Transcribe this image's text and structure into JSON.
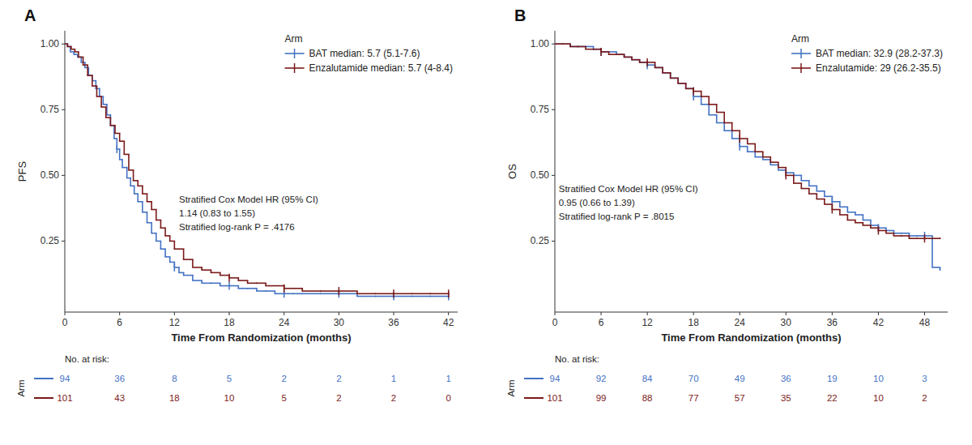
{
  "chart_data": [
    {
      "type": "step",
      "title": "A",
      "ylabel": "PFS",
      "xlabel": "Time From Randomization (months)",
      "xlim": [
        0,
        43
      ],
      "ylim": [
        -0.02,
        1.05
      ],
      "xticks": [
        0,
        6,
        12,
        18,
        24,
        30,
        36,
        42
      ],
      "yticks": [
        0.25,
        {
          "value": 0.5,
          "label": "0.50"
        },
        0.75,
        {
          "value": 1,
          "label": "1.00"
        }
      ],
      "grid": false,
      "legend": "upper right",
      "legend_title": "Arm",
      "annotations": [
        {
          "text": "Stratified Cox Model HR (95% CI)\n1.14 (0.83 to 1.55)\nStratified log-rank  P = .4176",
          "x": 12.5,
          "y": 0.43
        }
      ],
      "at_risk_label": "No. at risk:",
      "at_risk_row_label": "Arm",
      "at_risk_times": [
        0,
        6,
        12,
        18,
        24,
        30,
        36,
        42
      ],
      "series": [
        {
          "name": "BAT median: 5.7 (5.1-7.6)",
          "color": "#4472C4",
          "x": [
            0.0,
            0.3,
            0.6,
            1.0,
            1.4,
            1.8,
            2.2,
            2.6,
            3.0,
            3.4,
            3.8,
            4.2,
            4.6,
            5.0,
            5.4,
            5.7,
            6.0,
            6.3,
            6.8,
            7.2,
            7.6,
            8.0,
            8.5,
            9.0,
            9.5,
            10.0,
            10.5,
            11.0,
            11.5,
            12.0,
            12.5,
            13.0,
            14.0,
            15.0,
            16.0,
            17.0,
            18.0,
            19.0,
            20.0,
            21.0,
            22.0,
            23.0,
            24.0,
            25.0,
            26.0,
            28.0,
            30.0,
            32.0,
            34.0,
            36.0,
            38.0,
            40.0,
            42.0
          ],
          "values": [
            1.0,
            0.99,
            0.97,
            0.96,
            0.95,
            0.93,
            0.91,
            0.88,
            0.86,
            0.83,
            0.8,
            0.77,
            0.73,
            0.69,
            0.64,
            0.6,
            0.56,
            0.53,
            0.49,
            0.46,
            0.43,
            0.4,
            0.36,
            0.32,
            0.28,
            0.25,
            0.22,
            0.19,
            0.17,
            0.15,
            0.13,
            0.12,
            0.1,
            0.09,
            0.09,
            0.08,
            0.08,
            0.07,
            0.07,
            0.06,
            0.06,
            0.05,
            0.05,
            0.05,
            0.05,
            0.05,
            0.05,
            0.04,
            0.04,
            0.04,
            0.04,
            0.04,
            0.04
          ],
          "censor_x": [
            5.7,
            12.0,
            18.0,
            24.0,
            30.0,
            36.0,
            42.0
          ],
          "censor_y": [
            0.6,
            0.15,
            0.08,
            0.05,
            0.05,
            0.04,
            0.04
          ],
          "at_risk": [
            94,
            36,
            8,
            5,
            2,
            2,
            1,
            1
          ]
        },
        {
          "name": "Enzalutamide median: 5.7 (4-8.4)",
          "color": "#7B1A1A",
          "x": [
            0.0,
            0.3,
            0.7,
            1.1,
            1.5,
            2.0,
            2.5,
            3.0,
            3.5,
            4.0,
            4.5,
            5.0,
            5.5,
            6.0,
            6.5,
            7.0,
            7.5,
            8.0,
            8.5,
            9.0,
            9.5,
            10.0,
            10.5,
            11.0,
            11.5,
            12.0,
            13.0,
            14.0,
            15.0,
            16.0,
            17.0,
            18.0,
            19.0,
            20.0,
            21.0,
            22.0,
            24.0,
            26.0,
            28.0,
            30.0,
            32.0,
            34.0,
            36.0,
            38.0,
            40.0,
            42.0
          ],
          "values": [
            1.0,
            0.99,
            0.98,
            0.97,
            0.95,
            0.92,
            0.88,
            0.84,
            0.8,
            0.76,
            0.72,
            0.69,
            0.66,
            0.63,
            0.58,
            0.52,
            0.48,
            0.46,
            0.43,
            0.4,
            0.37,
            0.33,
            0.3,
            0.27,
            0.25,
            0.22,
            0.18,
            0.15,
            0.14,
            0.13,
            0.12,
            0.11,
            0.1,
            0.09,
            0.09,
            0.08,
            0.07,
            0.06,
            0.06,
            0.06,
            0.05,
            0.05,
            0.05,
            0.05,
            0.05,
            0.05
          ],
          "censor_x": [
            18.0,
            24.0,
            30.0,
            36.0,
            42.0
          ],
          "censor_y": [
            0.11,
            0.07,
            0.06,
            0.05,
            0.05
          ],
          "at_risk": [
            101,
            43,
            18,
            10,
            5,
            2,
            2,
            0
          ]
        }
      ]
    },
    {
      "type": "step",
      "title": "B",
      "ylabel": "OS",
      "xlabel": "Time From Randomization (months)",
      "xlim": [
        0,
        51
      ],
      "ylim": [
        -0.02,
        1.05
      ],
      "xticks": [
        0,
        6,
        12,
        18,
        24,
        30,
        36,
        42,
        48
      ],
      "yticks": [
        0.25,
        {
          "value": 0.5,
          "label": "0.50"
        },
        0.75,
        {
          "value": 1,
          "label": "1.00"
        }
      ],
      "grid": false,
      "legend": "upper right",
      "legend_title": "Arm",
      "annotations": [
        {
          "text": "Stratified Cox Model HR (95% CI)\n0.95 (0.66 to 1.39)\nStratified log-rank  P = .8015",
          "x": 0.5,
          "y": 0.47
        }
      ],
      "at_risk_label": "No. at risk:",
      "at_risk_row_label": "Arm",
      "at_risk_times": [
        0,
        6,
        12,
        18,
        24,
        30,
        36,
        42,
        48
      ],
      "series": [
        {
          "name": "BAT median: 32.9 (28.2-37.3)",
          "color": "#4472C4",
          "x": [
            0,
            1,
            2,
            3,
            4,
            5,
            6,
            7,
            8,
            9,
            10,
            11,
            12,
            13,
            14,
            15,
            16,
            17,
            18,
            19,
            20,
            21,
            22,
            23,
            24,
            25,
            26,
            27,
            28,
            29,
            30,
            31,
            32,
            33,
            34,
            35,
            36,
            37,
            38,
            39,
            40,
            41,
            42,
            43,
            44,
            45,
            46,
            47,
            48,
            49,
            50
          ],
          "values": [
            1.0,
            1.0,
            0.99,
            0.99,
            0.99,
            0.98,
            0.97,
            0.97,
            0.96,
            0.95,
            0.94,
            0.93,
            0.92,
            0.91,
            0.89,
            0.87,
            0.85,
            0.83,
            0.8,
            0.77,
            0.73,
            0.7,
            0.67,
            0.64,
            0.61,
            0.59,
            0.57,
            0.56,
            0.54,
            0.52,
            0.51,
            0.5,
            0.48,
            0.46,
            0.44,
            0.42,
            0.4,
            0.38,
            0.36,
            0.35,
            0.33,
            0.31,
            0.3,
            0.29,
            0.28,
            0.28,
            0.27,
            0.27,
            0.27,
            0.15,
            0.14
          ],
          "censor_x": [
            6,
            12,
            18,
            24,
            30,
            36,
            42,
            48
          ],
          "censor_y": [
            0.97,
            0.92,
            0.8,
            0.61,
            0.51,
            0.4,
            0.3,
            0.27
          ],
          "at_risk": [
            94,
            92,
            84,
            70,
            49,
            36,
            19,
            10,
            3
          ]
        },
        {
          "name": "Enzalutamide: 29 (26.2-35.5)",
          "color": "#7B1A1A",
          "x": [
            0,
            1,
            2,
            3,
            4,
            5,
            6,
            7,
            8,
            9,
            10,
            11,
            12,
            13,
            14,
            15,
            16,
            17,
            18,
            19,
            20,
            21,
            22,
            23,
            24,
            25,
            26,
            27,
            28,
            29,
            30,
            31,
            32,
            33,
            34,
            35,
            36,
            37,
            38,
            39,
            40,
            41,
            42,
            43,
            44,
            45,
            46,
            47,
            48,
            49,
            50
          ],
          "values": [
            1.0,
            1.0,
            0.99,
            0.99,
            0.98,
            0.98,
            0.97,
            0.96,
            0.96,
            0.95,
            0.94,
            0.93,
            0.93,
            0.91,
            0.89,
            0.87,
            0.85,
            0.83,
            0.82,
            0.8,
            0.77,
            0.74,
            0.7,
            0.67,
            0.64,
            0.62,
            0.59,
            0.57,
            0.55,
            0.53,
            0.5,
            0.47,
            0.45,
            0.43,
            0.41,
            0.39,
            0.37,
            0.35,
            0.33,
            0.32,
            0.31,
            0.3,
            0.29,
            0.28,
            0.27,
            0.27,
            0.26,
            0.26,
            0.26,
            0.26,
            0.26
          ],
          "censor_x": [
            6,
            12,
            18,
            24,
            30,
            36,
            42,
            48
          ],
          "censor_y": [
            0.97,
            0.93,
            0.82,
            0.64,
            0.5,
            0.37,
            0.29,
            0.26
          ],
          "at_risk": [
            101,
            99,
            88,
            77,
            57,
            35,
            22,
            10,
            2
          ]
        }
      ]
    }
  ]
}
